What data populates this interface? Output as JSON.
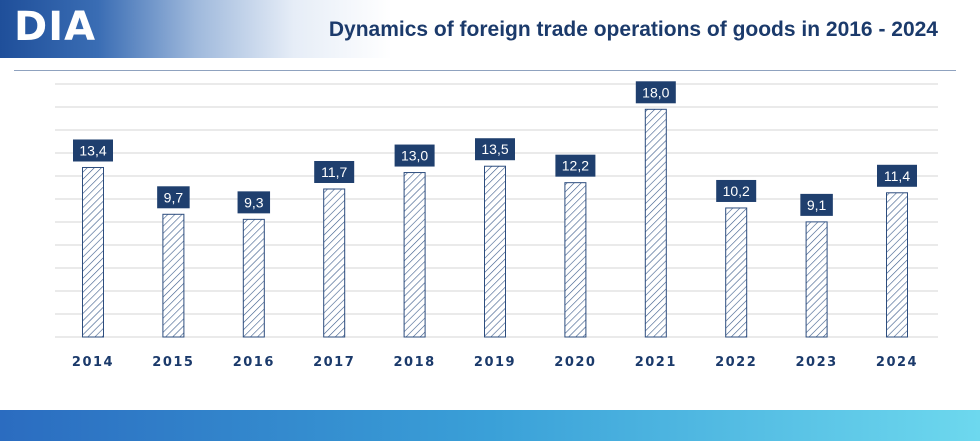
{
  "brand": {
    "logo": "DIA"
  },
  "chart_data": {
    "type": "bar",
    "title": "Dynamics of foreign trade operations of goods in 2016 - 2024",
    "categories": [
      "2014",
      "2015",
      "2016",
      "2017",
      "2018",
      "2019",
      "2020",
      "2021",
      "2022",
      "2023",
      "2024"
    ],
    "values": [
      13.4,
      9.7,
      9.3,
      11.7,
      13.0,
      13.5,
      12.2,
      18.0,
      10.2,
      9.1,
      11.4
    ],
    "value_labels": [
      "13,4",
      "9,7",
      "9,3",
      "11,7",
      "13,0",
      "13,5",
      "12,2",
      "18,0",
      "10,2",
      "9,1",
      "11,4"
    ],
    "ylim": [
      0,
      20
    ],
    "grid": true,
    "xlabel": "",
    "ylabel": "",
    "colors": {
      "bar_hatch": "#3a5a8a",
      "label_bg": "#1f3f6e",
      "label_text": "#ffffff",
      "grid": "#d4d4d4",
      "axis_text": "#1b3a6b"
    }
  }
}
